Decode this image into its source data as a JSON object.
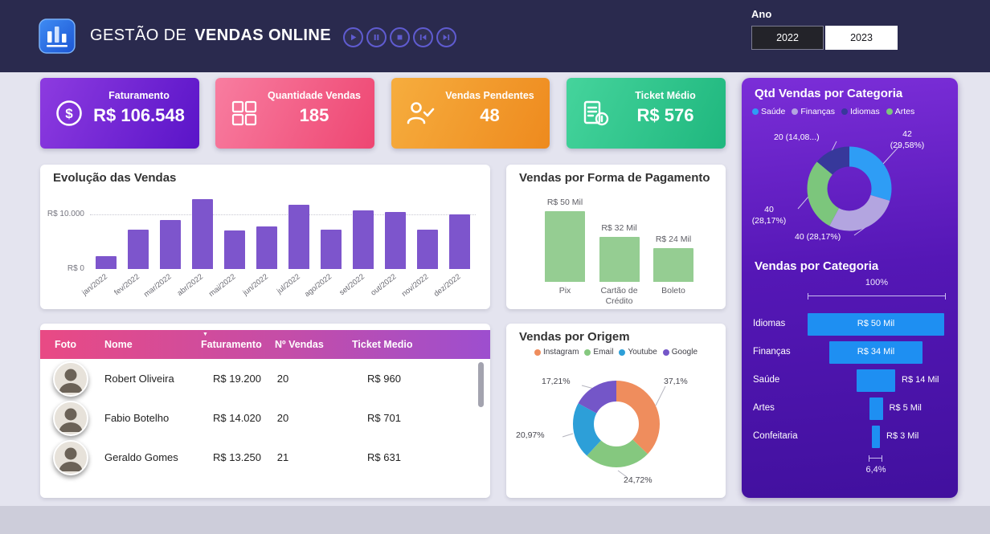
{
  "header": {
    "title_regular": "GESTÃO DE",
    "title_bold": "VENDAS ONLINE",
    "player_controls": [
      "play-icon",
      "pause-icon",
      "stop-icon",
      "previous-icon",
      "next-icon"
    ],
    "year": {
      "label": "Ano",
      "options": [
        "2022",
        "2023"
      ],
      "selected": "2023"
    }
  },
  "kpis": [
    {
      "label": "Faturamento",
      "value": "R$ 106.548",
      "icon": "dollar-circle-icon",
      "gradient": [
        "#8d3be0",
        "#5a14c8"
      ]
    },
    {
      "label": "Quantidade Vendas",
      "value": "185",
      "icon": "boxes-icon",
      "gradient": [
        "#f87da0",
        "#ee4672"
      ]
    },
    {
      "label": "Vendas Pendentes",
      "value": "48",
      "icon": "person-check-icon",
      "gradient": [
        "#f6ad3e",
        "#ee8a1e"
      ]
    },
    {
      "label": "Ticket Médio",
      "value": "R$ 576",
      "icon": "receipt-icon",
      "gradient": [
        "#45d49c",
        "#1fb77e"
      ]
    }
  ],
  "table": {
    "columns": [
      "Foto",
      "Nome",
      "Faturamento",
      "Nº Vendas",
      "Ticket Medio"
    ],
    "sort_indicator": "▼",
    "rows": [
      {
        "nome": "Robert Oliveira",
        "faturamento": "R$ 19.200",
        "vendas": "20",
        "ticket": "R$ 960"
      },
      {
        "nome": "Fabio Botelho",
        "faturamento": "R$ 14.020",
        "vendas": "20",
        "ticket": "R$ 701"
      },
      {
        "nome": "Geraldo Gomes",
        "faturamento": "R$ 13.250",
        "vendas": "21",
        "ticket": "R$ 631"
      }
    ]
  },
  "chart_data": [
    {
      "id": "evolucao",
      "type": "bar",
      "title": "Evolução das Vendas",
      "categories": [
        "jan/2022",
        "fev/2022",
        "mar/2022",
        "abr/2022",
        "mai/2022",
        "jun/2022",
        "jul/2022",
        "ago/2022",
        "set/2022",
        "out/2022",
        "nov/2022",
        "dez/2022"
      ],
      "values": [
        2400,
        7200,
        9000,
        12800,
        7000,
        7800,
        11700,
        7200,
        10800,
        10400,
        7200,
        10000
      ],
      "ytick_labels": [
        "R$ 10.000",
        "R$ 0"
      ],
      "ytick_values": [
        10000,
        0
      ],
      "ylim": [
        0,
        13000
      ],
      "grid": "dotted",
      "bar_color": "#7d55cc"
    },
    {
      "id": "pagamento",
      "type": "bar",
      "title": "Vendas por Forma de Pagamento",
      "categories": [
        "Pix",
        "Cartão de Crédito",
        "Boleto"
      ],
      "values": [
        50,
        32,
        24
      ],
      "unit": "R$ Mil",
      "value_labels": [
        "R$ 50 Mil",
        "R$ 32 Mil",
        "R$ 24 Mil"
      ],
      "ylim": [
        0,
        55
      ],
      "bar_color": "#95cd92"
    },
    {
      "id": "categoria_qtd",
      "type": "donut",
      "title": "Qtd Vendas por Categoria",
      "legend": [
        {
          "label": "Saúde",
          "color": "#2e9df5"
        },
        {
          "label": "Finanças",
          "color": "#b3a5e0"
        },
        {
          "label": "Idiomas",
          "color": "#37389b"
        },
        {
          "label": "Artes",
          "color": "#7cc67c"
        }
      ],
      "segments": [
        {
          "label": "Saúde",
          "value": 42,
          "pct": 29.58,
          "color": "#2e9df5",
          "label_lines": [
            "42",
            "(29,58%)"
          ]
        },
        {
          "label": "Finanças",
          "value": 40,
          "pct": 28.17,
          "color": "#b3a5e0",
          "label_lines": [
            "40 (28,17%)"
          ]
        },
        {
          "label": "Artes",
          "value": 40,
          "pct": 28.17,
          "color": "#7cc67c",
          "label_lines": [
            "40",
            "(28,17%)"
          ]
        },
        {
          "label": "Idiomas",
          "value": 20,
          "pct": 14.08,
          "color": "#37389b",
          "label_lines": [
            "20 (14,08...)"
          ]
        }
      ]
    },
    {
      "id": "origem",
      "type": "donut",
      "title": "Vendas por Origem",
      "legend": [
        {
          "label": "Instagram",
          "color": "#ef8d5d"
        },
        {
          "label": "Email",
          "color": "#85c87f"
        },
        {
          "label": "Youtube",
          "color": "#2d9fd8"
        },
        {
          "label": "Google",
          "color": "#7456c8"
        }
      ],
      "segments": [
        {
          "label": "Instagram",
          "pct": 37.1,
          "color": "#ef8d5d",
          "label_lines": [
            "37,1%"
          ]
        },
        {
          "label": "Email",
          "pct": 24.72,
          "color": "#85c87f",
          "label_lines": [
            "24,72%"
          ]
        },
        {
          "label": "Youtube",
          "pct": 20.97,
          "color": "#2d9fd8",
          "label_lines": [
            "20,97%"
          ]
        },
        {
          "label": "Google",
          "pct": 17.21,
          "color": "#7456c8",
          "label_lines": [
            "17,21%"
          ]
        }
      ]
    },
    {
      "id": "categoria_funil",
      "type": "funnel",
      "title": "Vendas por Categoria",
      "top_label": "100%",
      "bottom_label": "6,4%",
      "bar_color": "#1e8ff2",
      "items": [
        {
          "label": "Idiomas",
          "value": 50,
          "value_label": "R$ 50 Mil"
        },
        {
          "label": "Finanças",
          "value": 34,
          "value_label": "R$ 34 Mil"
        },
        {
          "label": "Saúde",
          "value": 14,
          "value_label": "R$ 14 Mil"
        },
        {
          "label": "Artes",
          "value": 5,
          "value_label": "R$ 5 Mil"
        },
        {
          "label": "Confeitaria",
          "value": 3,
          "value_label": "R$ 3 Mil"
        }
      ]
    }
  ]
}
